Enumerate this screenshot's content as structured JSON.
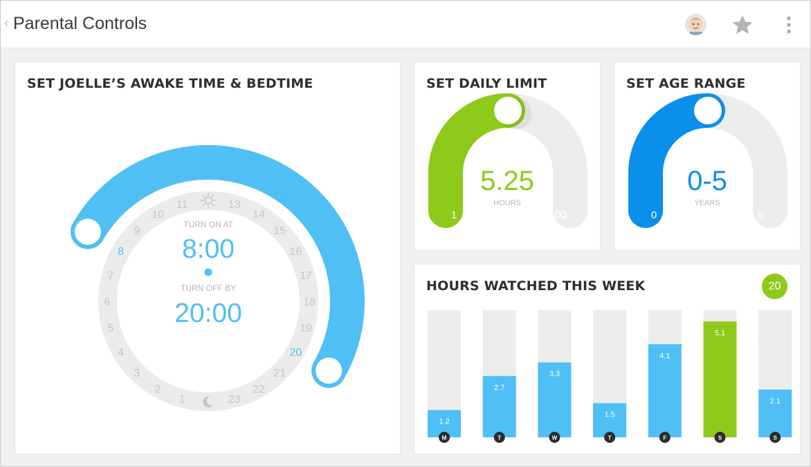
{
  "header": {
    "back_glyph": "‹",
    "title": "Parental Controls",
    "avatar_icon": "child-avatar-icon",
    "star_icon": "star-icon",
    "menu_icon": "more-vertical-icon"
  },
  "sleep_schedule": {
    "title": "SET JOELLE’S AWAKE TIME & BEDTIME",
    "turn_on_label": "TURN ON AT",
    "turn_on_value": "8:00",
    "turn_off_label": "TURN OFF BY",
    "turn_off_value": "20:00",
    "start_hour": 8,
    "end_hour": 20,
    "hours": [
      "1",
      "2",
      "3",
      "4",
      "5",
      "6",
      "7",
      "8",
      "9",
      "10",
      "11",
      "12",
      "13",
      "14",
      "15",
      "16",
      "17",
      "18",
      "19",
      "20",
      "21",
      "22",
      "23",
      "24"
    ],
    "noon_icon": "sun-icon",
    "midnight_icon": "moon-icon"
  },
  "daily_limit": {
    "title": "SET DAILY LIMIT",
    "value": "5.25",
    "unit": "HOURS",
    "min_label": "1",
    "max_label": "∞",
    "level": 0.5
  },
  "age_range": {
    "title": "SET AGE RANGE",
    "value": "0-5",
    "unit": "YEARS",
    "min_label": "0",
    "max_label": "9",
    "level": 0.5
  },
  "weekly": {
    "title": "HOURS WATCHED THIS WEEK",
    "total": "20",
    "days": [
      {
        "day": "M",
        "value": "1.2"
      },
      {
        "day": "T",
        "value": "2.7"
      },
      {
        "day": "W",
        "value": "3.3"
      },
      {
        "day": "T",
        "value": "1.5"
      },
      {
        "day": "F",
        "value": "4.1"
      },
      {
        "day": "S",
        "value": "5.1",
        "highlight": true
      },
      {
        "day": "S",
        "value": "2.1"
      }
    ],
    "max_value": 5.6
  },
  "colors": {
    "blue": "#4fbff5",
    "deep_blue": "#0a8fea",
    "green": "#8fc919",
    "track": "#ececec",
    "hour_text": "#c6c6c6",
    "title_text": "#2f2f2f"
  }
}
